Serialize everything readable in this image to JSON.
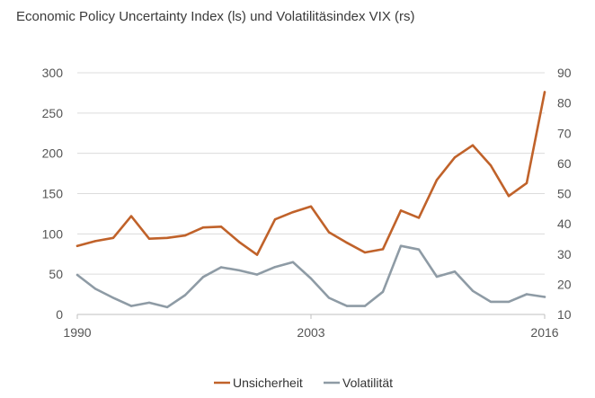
{
  "chart_data": {
    "type": "line",
    "title": "Economic Policy Uncertainty Index (ls) und Volatilitäsindex VIX (rs)",
    "x_tick_labels": [
      "1990",
      "2003",
      "2016"
    ],
    "x": [
      1990,
      1991,
      1992,
      1993,
      1994,
      1995,
      1996,
      1997,
      1998,
      1999,
      2000,
      2001,
      2002,
      2003,
      2004,
      2005,
      2006,
      2007,
      2008,
      2009,
      2010,
      2011,
      2012,
      2013,
      2014,
      2015,
      2016
    ],
    "series": [
      {
        "name": "Unsicherheit",
        "axis": "left",
        "color": "#c0622a",
        "values": [
          85,
          91,
          95,
          122,
          94,
          95,
          98,
          108,
          109,
          90,
          74,
          118,
          127,
          134,
          102,
          89,
          77,
          81,
          129,
          120,
          167,
          195,
          210,
          185,
          147,
          163,
          276
        ]
      },
      {
        "name": "Volatilität",
        "axis": "right",
        "color": "#8e9ba5",
        "values": [
          23.1,
          18.5,
          15.5,
          12.8,
          13.9,
          12.4,
          16.4,
          22.4,
          25.6,
          24.6,
          23.2,
          25.7,
          27.3,
          21.9,
          15.5,
          12.8,
          12.8,
          17.5,
          32.7,
          31.5,
          22.5,
          24.2,
          17.8,
          14.2,
          14.2,
          16.7,
          15.8
        ]
      }
    ],
    "y_left": {
      "range": [
        0,
        300
      ],
      "ticks": [
        0,
        50,
        100,
        150,
        200,
        250,
        300
      ]
    },
    "y_right": {
      "range": [
        10,
        90
      ],
      "ticks": [
        10,
        20,
        30,
        40,
        50,
        60,
        70,
        80,
        90
      ]
    },
    "xlim": [
      1990,
      2016
    ],
    "grid": true,
    "legend_position": "bottom"
  }
}
